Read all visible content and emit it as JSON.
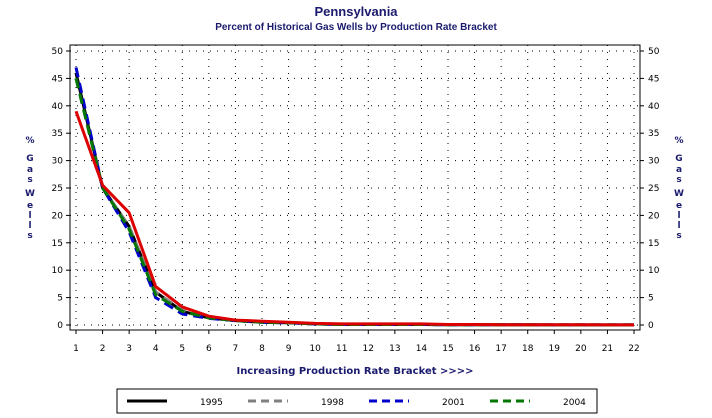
{
  "chart_data": {
    "type": "line",
    "title": "Pennsylvania",
    "subtitle": "Percent of Historical Gas Wells by Production Rate Bracket",
    "xlabel": "Increasing Production Rate Bracket >>>>",
    "ylabel_chars": [
      "%",
      "G",
      "a",
      "s",
      "W",
      "e",
      "l",
      "l",
      "s"
    ],
    "x": [
      1,
      2,
      3,
      4,
      5,
      6,
      7,
      8,
      9,
      10,
      11,
      12,
      13,
      14,
      15,
      16,
      17,
      18,
      19,
      20,
      21,
      22
    ],
    "xlim": [
      1,
      22
    ],
    "ylim": [
      0,
      50
    ],
    "yticks": [
      0,
      5,
      10,
      15,
      20,
      25,
      30,
      35,
      40,
      45,
      50
    ],
    "grid": true,
    "legend_position": "bottom",
    "series": [
      {
        "name": "1995",
        "color": "#000000",
        "dash": "solid",
        "values": [
          46,
          25,
          18,
          6,
          2.5,
          1.3,
          0.8,
          0.5,
          0.4,
          0.2,
          0.1,
          0.1,
          0.1,
          0.1,
          0.05,
          0.05,
          0.03,
          0.03,
          0.02,
          0.02,
          0.01,
          0.01
        ]
      },
      {
        "name": "1998",
        "color": "#808080",
        "dash": "dashed",
        "values": [
          45,
          25,
          18,
          6,
          2.7,
          1.3,
          0.8,
          0.5,
          0.4,
          0.2,
          0.1,
          0.1,
          0.1,
          0.1,
          0.05,
          0.05,
          0.03,
          0.03,
          0.02,
          0.02,
          0.01,
          0.01
        ]
      },
      {
        "name": "2001",
        "color": "#0000cc",
        "dash": "dashed",
        "values": [
          47,
          25,
          17,
          5,
          2,
          1.2,
          0.8,
          0.5,
          0.4,
          0.2,
          0.1,
          0.1,
          0.1,
          0.1,
          0.05,
          0.05,
          0.03,
          0.03,
          0.02,
          0.02,
          0.01,
          0.01
        ]
      },
      {
        "name": "2004",
        "color": "#007700",
        "dash": "dashed",
        "values": [
          45,
          25,
          17.5,
          5.5,
          2.5,
          1.3,
          0.8,
          0.5,
          0.4,
          0.2,
          0.1,
          0.1,
          0.1,
          0.1,
          0.05,
          0.05,
          0.03,
          0.03,
          0.02,
          0.02,
          0.01,
          0.01
        ]
      },
      {
        "name": "",
        "color": "#dd0000",
        "dash": "solid",
        "values": [
          39,
          25.5,
          20.5,
          7,
          3.3,
          1.6,
          0.9,
          0.7,
          0.5,
          0.3,
          0.2,
          0.2,
          0.2,
          0.2,
          0.1,
          0.1,
          0.05,
          0.05,
          0.05,
          0.05,
          0.02,
          0.02
        ]
      }
    ]
  }
}
